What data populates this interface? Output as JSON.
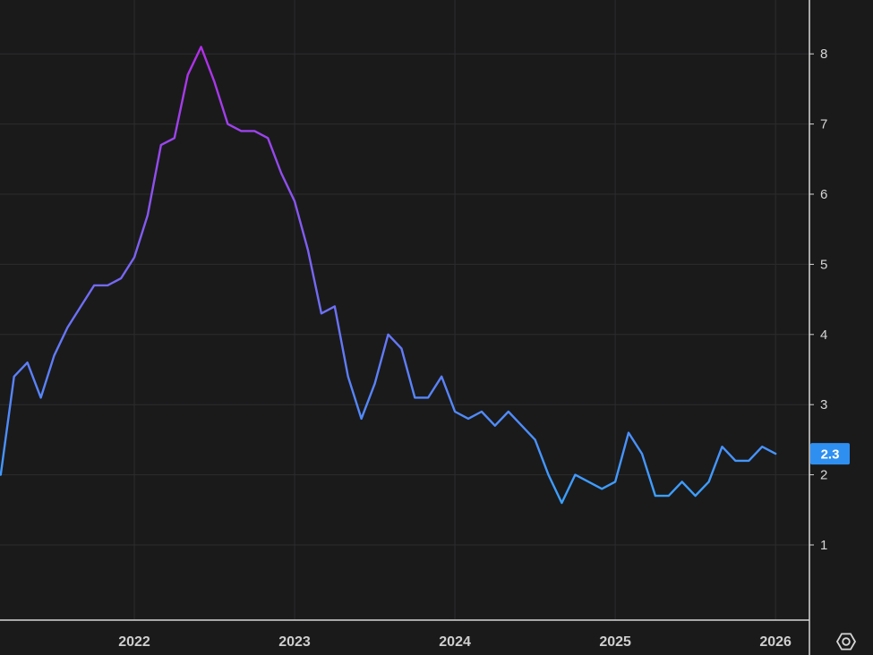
{
  "chart_data": {
    "type": "line",
    "title": "",
    "xlabel": "",
    "ylabel": "",
    "x_tick_labels": [
      "2022",
      "2023",
      "2024",
      "2025",
      "2026"
    ],
    "y_ticks": [
      1,
      2,
      3,
      4,
      5,
      6,
      7,
      8
    ],
    "ylim": [
      0,
      8.7
    ],
    "xlim": [
      "2021-02",
      "2026-04"
    ],
    "grid": true,
    "colors": {
      "low": "#3aa0ff",
      "high": "#b22fe8",
      "badge": "#2f8ff0",
      "background": "#1a1a1b"
    },
    "last_value_label": "2.3",
    "series": [
      {
        "x": [
          "2021-03",
          "2021-04",
          "2021-05",
          "2021-06",
          "2021-07",
          "2021-08",
          "2021-09",
          "2021-10",
          "2021-11",
          "2021-12",
          "2022-01",
          "2022-02",
          "2022-03",
          "2022-04",
          "2022-05",
          "2022-06",
          "2022-07",
          "2022-08",
          "2022-09",
          "2022-10",
          "2022-11",
          "2022-12",
          "2023-01",
          "2023-02",
          "2023-03",
          "2023-04",
          "2023-05",
          "2023-06",
          "2023-07",
          "2023-08",
          "2023-09",
          "2023-10",
          "2023-11",
          "2023-12",
          "2024-01",
          "2024-02",
          "2024-03",
          "2024-04",
          "2024-05",
          "2024-06",
          "2024-07",
          "2024-08",
          "2024-09",
          "2024-10",
          "2024-11",
          "2024-12",
          "2025-01",
          "2025-02",
          "2025-03",
          "2025-04",
          "2025-05",
          "2025-06",
          "2025-07",
          "2025-08",
          "2025-09",
          "2025-10",
          "2025-11",
          "2025-12",
          "2026-01"
        ],
        "values": [
          2.0,
          3.4,
          3.6,
          3.1,
          3.7,
          4.1,
          4.4,
          4.7,
          4.7,
          4.8,
          5.1,
          5.7,
          6.7,
          6.8,
          7.7,
          8.1,
          7.6,
          7.0,
          6.9,
          6.9,
          6.8,
          6.3,
          5.9,
          5.2,
          4.3,
          4.4,
          3.4,
          2.8,
          3.3,
          4.0,
          3.8,
          3.1,
          3.1,
          3.4,
          2.9,
          2.8,
          2.9,
          2.7,
          2.9,
          2.7,
          2.5,
          2.0,
          1.6,
          2.0,
          1.9,
          1.8,
          1.9,
          2.6,
          2.3,
          1.7,
          1.7,
          1.9,
          1.7,
          1.9,
          2.4,
          2.2,
          2.2,
          2.4,
          2.3
        ]
      }
    ]
  },
  "controls": {
    "settings_icon": "settings-gear-icon"
  }
}
